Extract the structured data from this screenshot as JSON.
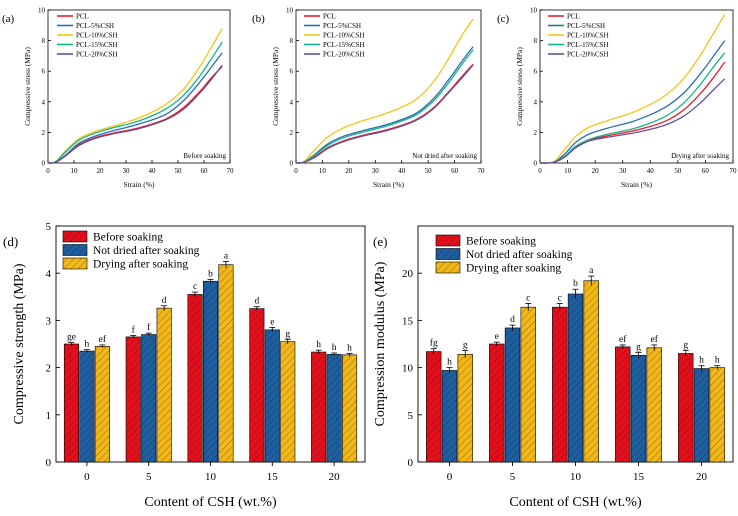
{
  "figure": {
    "colors": {
      "PCL": "#e8202a",
      "PCL-5%CSH": "#2a6fb0",
      "PCL-10%CSH": "#f5c518",
      "PCL-15%CSH": "#14b48c",
      "PCL-20%CSH": "#6a4c9c",
      "before": "#e3101c",
      "notdried": "#1f5fa0",
      "drying": "#f2b81a"
    }
  },
  "chart_data": [
    {
      "type": "line",
      "panel_label": "(a)",
      "annotation": "Before soaking",
      "xlabel": "Strain (%)",
      "ylabel": "Compressive stress (MPa)",
      "xlim": [
        0,
        70
      ],
      "ylim": [
        0,
        10
      ],
      "xticks": [
        0,
        10,
        20,
        30,
        40,
        50,
        60,
        70
      ],
      "yticks": [
        0,
        2,
        4,
        6,
        8,
        10
      ],
      "series": [
        {
          "name": "PCL",
          "x": [
            0,
            3,
            7,
            12,
            18,
            25,
            35,
            45,
            52,
            58,
            63,
            67
          ],
          "y": [
            0,
            0.05,
            0.5,
            1.2,
            1.65,
            1.95,
            2.3,
            2.85,
            3.6,
            4.6,
            5.6,
            6.3
          ]
        },
        {
          "name": "PCL-5%CSH",
          "x": [
            0,
            3,
            7,
            12,
            18,
            25,
            35,
            45,
            52,
            58,
            63,
            67
          ],
          "y": [
            0,
            0.05,
            0.55,
            1.3,
            1.75,
            2.1,
            2.55,
            3.15,
            4.05,
            5.2,
            6.3,
            7.2
          ]
        },
        {
          "name": "PCL-10%CSH",
          "x": [
            0,
            3,
            7,
            12,
            18,
            25,
            35,
            45,
            52,
            58,
            63,
            67
          ],
          "y": [
            0,
            0.1,
            0.85,
            1.6,
            2.05,
            2.4,
            2.95,
            3.8,
            4.8,
            6.2,
            7.6,
            8.8
          ]
        },
        {
          "name": "PCL-15%CSH",
          "x": [
            0,
            3,
            7,
            12,
            18,
            25,
            35,
            45,
            52,
            58,
            63,
            67
          ],
          "y": [
            0,
            0.1,
            0.75,
            1.5,
            1.95,
            2.3,
            2.75,
            3.5,
            4.4,
            5.6,
            6.85,
            7.9
          ]
        },
        {
          "name": "PCL-20%CSH",
          "x": [
            0,
            3,
            7,
            12,
            18,
            25,
            35,
            45,
            52,
            58,
            63,
            67
          ],
          "y": [
            0,
            0.05,
            0.5,
            1.15,
            1.6,
            1.9,
            2.25,
            2.8,
            3.5,
            4.5,
            5.5,
            6.4
          ]
        }
      ]
    },
    {
      "type": "line",
      "panel_label": "(b)",
      "annotation": "Not dried after soaking",
      "xlabel": "Strain (%)",
      "ylabel": "Compressive stress (MPa)",
      "xlim": [
        0,
        70
      ],
      "ylim": [
        0,
        10
      ],
      "xticks": [
        0,
        10,
        20,
        30,
        40,
        50,
        60,
        70
      ],
      "yticks": [
        0,
        2,
        4,
        6,
        8,
        10
      ],
      "series": [
        {
          "name": "PCL",
          "x": [
            0,
            3,
            7,
            12,
            18,
            25,
            35,
            45,
            52,
            58,
            63,
            67
          ],
          "y": [
            0,
            0.05,
            0.4,
            1.0,
            1.45,
            1.8,
            2.2,
            2.8,
            3.6,
            4.7,
            5.7,
            6.45
          ]
        },
        {
          "name": "PCL-5%CSH",
          "x": [
            0,
            3,
            7,
            12,
            18,
            25,
            35,
            45,
            52,
            58,
            63,
            67
          ],
          "y": [
            0,
            0.05,
            0.55,
            1.25,
            1.75,
            2.1,
            2.55,
            3.2,
            4.2,
            5.5,
            6.7,
            7.6
          ]
        },
        {
          "name": "PCL-10%CSH",
          "x": [
            0,
            3,
            7,
            12,
            18,
            25,
            35,
            45,
            52,
            58,
            63,
            67
          ],
          "y": [
            0,
            0.1,
            0.85,
            1.7,
            2.3,
            2.75,
            3.3,
            4.1,
            5.3,
            6.9,
            8.4,
            9.4
          ]
        },
        {
          "name": "PCL-15%CSH",
          "x": [
            0,
            3,
            7,
            12,
            18,
            25,
            35,
            45,
            52,
            58,
            63,
            67
          ],
          "y": [
            0,
            0.05,
            0.5,
            1.15,
            1.65,
            2.0,
            2.45,
            3.1,
            4.05,
            5.3,
            6.5,
            7.4
          ]
        },
        {
          "name": "PCL-20%CSH",
          "x": [
            0,
            3,
            7,
            12,
            18,
            25,
            35,
            45,
            52,
            58,
            63,
            67
          ],
          "y": [
            0,
            0.05,
            0.35,
            0.95,
            1.4,
            1.75,
            2.15,
            2.75,
            3.55,
            4.65,
            5.6,
            6.4
          ]
        }
      ]
    },
    {
      "type": "line",
      "panel_label": "(c)",
      "annotation": "Drying after soaking",
      "xlabel": "Strain (%)",
      "ylabel": "Compressive stress (MPa)",
      "xlim": [
        0,
        70
      ],
      "ylim": [
        0,
        10
      ],
      "xticks": [
        0,
        10,
        20,
        30,
        40,
        50,
        60,
        70
      ],
      "yticks": [
        0,
        2,
        4,
        6,
        8,
        10
      ],
      "series": [
        {
          "name": "PCL",
          "x": [
            0,
            5,
            9,
            13,
            18,
            25,
            35,
            45,
            52,
            58,
            63,
            67
          ],
          "y": [
            0,
            0.05,
            0.4,
            1.05,
            1.5,
            1.8,
            2.15,
            2.7,
            3.45,
            4.5,
            5.6,
            6.6
          ]
        },
        {
          "name": "PCL-5%CSH",
          "x": [
            0,
            5,
            9,
            13,
            18,
            25,
            35,
            45,
            52,
            58,
            63,
            67
          ],
          "y": [
            0,
            0.05,
            0.6,
            1.35,
            1.9,
            2.3,
            2.8,
            3.6,
            4.55,
            5.8,
            7.0,
            8.0
          ]
        },
        {
          "name": "PCL-10%CSH",
          "x": [
            0,
            5,
            9,
            13,
            18,
            25,
            35,
            45,
            52,
            58,
            63,
            67
          ],
          "y": [
            0,
            0.1,
            0.9,
            1.75,
            2.35,
            2.8,
            3.4,
            4.35,
            5.5,
            7.0,
            8.5,
            9.7
          ]
        },
        {
          "name": "PCL-15%CSH",
          "x": [
            0,
            5,
            9,
            13,
            18,
            25,
            35,
            45,
            52,
            58,
            63,
            67
          ],
          "y": [
            0,
            0.05,
            0.45,
            1.1,
            1.55,
            1.9,
            2.3,
            3.0,
            3.9,
            5.1,
            6.3,
            7.2
          ]
        },
        {
          "name": "PCL-20%CSH",
          "x": [
            0,
            5,
            9,
            13,
            18,
            25,
            35,
            45,
            52,
            58,
            63,
            67
          ],
          "y": [
            0,
            0.05,
            0.4,
            1.0,
            1.45,
            1.7,
            2.0,
            2.45,
            3.05,
            3.9,
            4.8,
            5.5
          ]
        }
      ]
    },
    {
      "type": "bar",
      "panel_label": "(d)",
      "xlabel": "Content of CSH (wt.%)",
      "ylabel": "Compressive strength (MPa)",
      "categories": [
        "0",
        "5",
        "10",
        "15",
        "20"
      ],
      "ylim": [
        0,
        5
      ],
      "yticks": [
        0,
        1,
        2,
        3,
        4,
        5
      ],
      "series": [
        {
          "name": "Before soaking",
          "values": [
            2.5,
            2.65,
            3.55,
            3.25,
            2.33
          ],
          "errors": [
            0.03,
            0.03,
            0.05,
            0.04,
            0.04
          ],
          "labels": [
            "ge",
            "f",
            "c",
            "d",
            "h"
          ]
        },
        {
          "name": "Not dried after soaking",
          "values": [
            2.35,
            2.7,
            3.83,
            2.8,
            2.28
          ],
          "errors": [
            0.03,
            0.03,
            0.04,
            0.05,
            0.03
          ],
          "labels": [
            "h",
            "f",
            "b",
            "e",
            "h"
          ]
        },
        {
          "name": "Drying after soaking",
          "values": [
            2.45,
            3.26,
            4.18,
            2.55,
            2.27
          ],
          "errors": [
            0.03,
            0.05,
            0.07,
            0.05,
            0.03
          ],
          "labels": [
            "ef",
            "d",
            "a",
            "g",
            "h"
          ]
        }
      ]
    },
    {
      "type": "bar",
      "panel_label": "(e)",
      "xlabel": "Content of CSH (wt.%)",
      "ylabel": "Compression modulus (MPa)",
      "categories": [
        "0",
        "5",
        "10",
        "15",
        "20"
      ],
      "ylim": [
        0,
        25
      ],
      "yticks": [
        0,
        5,
        10,
        15,
        20
      ],
      "series": [
        {
          "name": "Before soaking",
          "values": [
            11.7,
            12.5,
            16.4,
            12.2,
            11.5
          ],
          "errors": [
            0.3,
            0.2,
            0.4,
            0.2,
            0.3
          ],
          "labels": [
            "fg",
            "e",
            "c",
            "ef",
            "g"
          ]
        },
        {
          "name": "Not dried after soaking",
          "values": [
            9.7,
            14.2,
            17.8,
            11.3,
            9.9
          ],
          "errors": [
            0.3,
            0.3,
            0.5,
            0.3,
            0.3
          ],
          "labels": [
            "h",
            "d",
            "b",
            "g",
            "h"
          ]
        },
        {
          "name": "Drying after soaking",
          "values": [
            11.4,
            16.4,
            19.2,
            12.1,
            10.0
          ],
          "errors": [
            0.4,
            0.4,
            0.5,
            0.3,
            0.2
          ],
          "labels": [
            "g",
            "c",
            "a",
            "ef",
            "h"
          ]
        }
      ]
    }
  ]
}
